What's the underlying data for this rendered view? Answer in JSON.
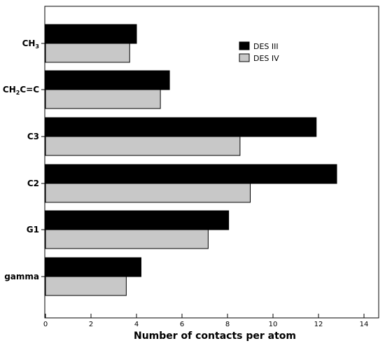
{
  "chart_data": {
    "type": "bar",
    "orientation": "horizontal",
    "title": "",
    "xlabel": "Number of contacts per atom",
    "ylabel": "",
    "xlim": [
      0,
      14
    ],
    "x_ticks": [
      0,
      2,
      4,
      6,
      8,
      10,
      12,
      14
    ],
    "grid": false,
    "legend_position": "top-right",
    "categories": [
      {
        "main": "CH",
        "sub": "3",
        "rest": ""
      },
      {
        "main": "CH",
        "sub": "2",
        "rest": "C=C"
      },
      {
        "main": "C3",
        "sub": "",
        "rest": ""
      },
      {
        "main": "C2",
        "sub": "",
        "rest": ""
      },
      {
        "main": "G1",
        "sub": "",
        "rest": ""
      },
      {
        "main": "gamma",
        "sub": "",
        "rest": ""
      }
    ],
    "series": [
      {
        "name": "DES III",
        "color": "#000000",
        "values": [
          4.0,
          5.45,
          11.9,
          12.8,
          8.05,
          4.2
        ]
      },
      {
        "name": "DES IV",
        "color": "#c8c8c8",
        "values": [
          3.7,
          5.05,
          8.55,
          9.0,
          7.15,
          3.55
        ]
      }
    ]
  }
}
